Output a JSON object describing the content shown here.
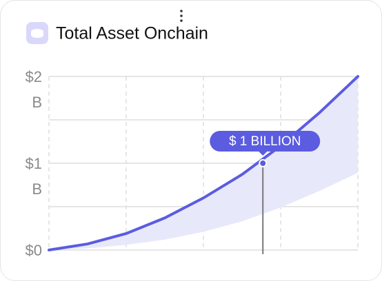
{
  "chart_data": {
    "type": "area",
    "title": "Total Asset Onchain",
    "x": [
      0,
      0.5,
      1,
      1.5,
      2,
      2.5,
      3,
      3.5,
      4
    ],
    "xlim": [
      0,
      4
    ],
    "xgrid": [
      0,
      1,
      2,
      3,
      4
    ],
    "series": [
      {
        "color": "#5b5ce0",
        "values": [
          0,
          0.07,
          0.19,
          0.37,
          0.6,
          0.87,
          1.2,
          1.58,
          2
        ]
      }
    ],
    "band": {
      "color": "#e8e8fb",
      "lower": [
        0,
        0.02,
        0.06,
        0.12,
        0.21,
        0.33,
        0.49,
        0.68,
        0.89
      ]
    },
    "ylim": [
      0,
      2
    ],
    "yticks": [
      {
        "value": 0,
        "label": "$0"
      },
      {
        "value": 1,
        "label": "$1 B"
      },
      {
        "value": 2,
        "label": "$2 B"
      }
    ],
    "minor_grid": true,
    "annotation": {
      "x": 2.77,
      "y": 1,
      "label": "$ 1 BILLION"
    }
  }
}
